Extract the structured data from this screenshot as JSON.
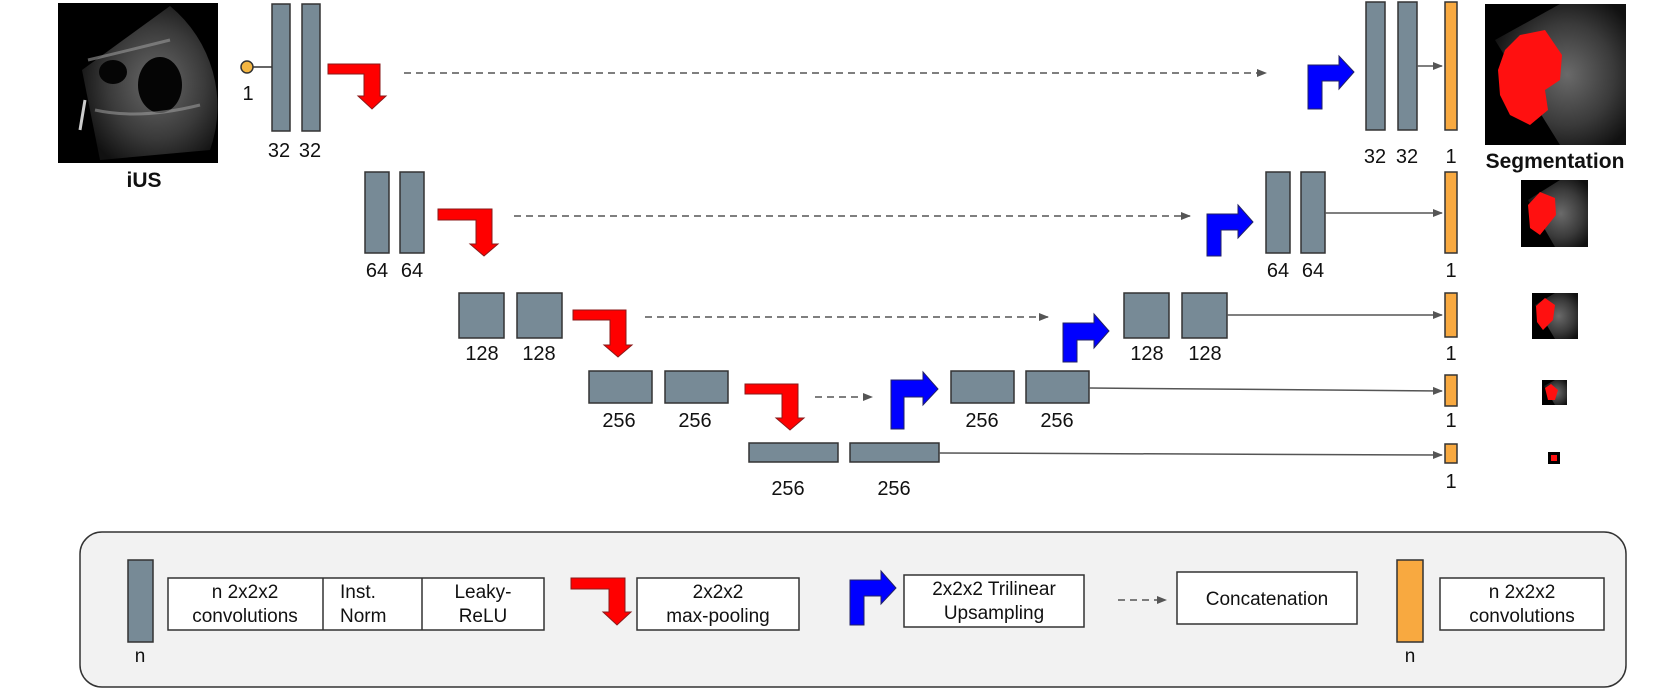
{
  "input_image": {
    "label": "iUS"
  },
  "output_image": {
    "label": "Segmentation"
  },
  "input_channels": "1",
  "encoder": {
    "level1": [
      "32",
      "32"
    ],
    "level2": [
      "64",
      "64"
    ],
    "level3": [
      "128",
      "128"
    ],
    "level4": [
      "256",
      "256"
    ],
    "bottleneck": [
      "256",
      "256"
    ]
  },
  "decoder": {
    "level1": [
      "32",
      "32"
    ],
    "level2": [
      "64",
      "64"
    ],
    "level3": [
      "128",
      "128"
    ],
    "level4": [
      "256",
      "256"
    ]
  },
  "outputs": [
    "1",
    "1",
    "1",
    "1",
    "1"
  ],
  "legend": {
    "conv_n": "n",
    "conv_line1": "n 2x2x2",
    "conv_line2": "convolutions",
    "norm_line1": "Inst.",
    "norm_line2": "Norm",
    "relu_line1": "Leaky-",
    "relu_line2": "ReLU",
    "pool_line1": "2x2x2",
    "pool_line2": "max-pooling",
    "up_line1": "2x2x2 Trilinear",
    "up_line2": "Upsampling",
    "concat": "Concatenation",
    "out_n": "n",
    "out_line1": "n 2x2x2",
    "out_line2": "convolutions"
  },
  "colors": {
    "block": "#778a96",
    "pool_arrow": "#ff0000",
    "up_arrow": "#0000ff",
    "output_block": "#f8a940",
    "input_dot": "#f4b642",
    "legend_bg": "#f2f2f2"
  },
  "icons": [
    "pool-arrow-icon",
    "upsample-arrow-icon",
    "skip-connection-arrow-icon"
  ]
}
